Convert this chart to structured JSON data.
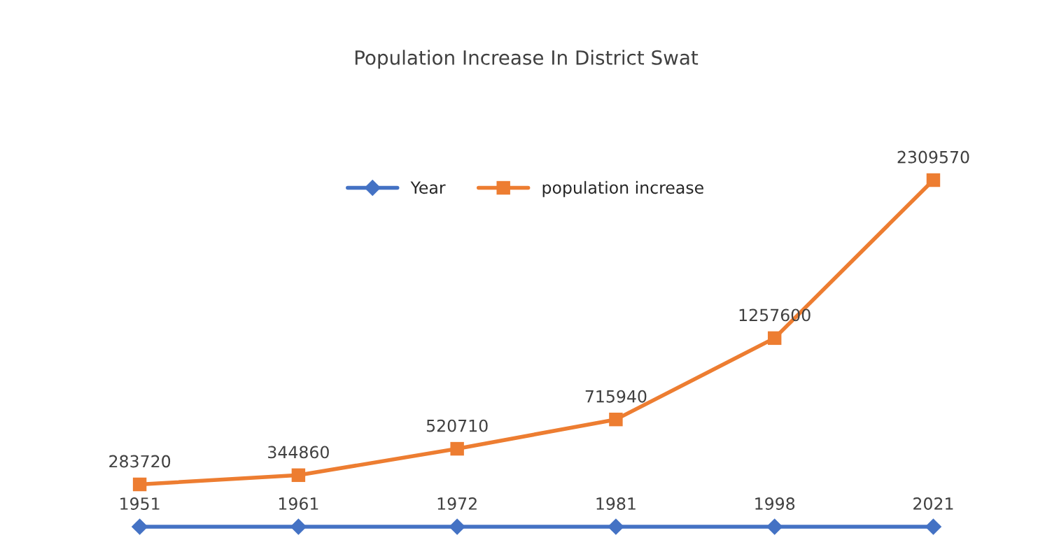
{
  "chart_data": {
    "type": "line",
    "title": "Population Increase In District Swat",
    "categories": [
      null,
      null,
      null,
      null,
      null,
      null
    ],
    "series": [
      {
        "name": "Year",
        "color": "#4472c4",
        "marker": "diamond",
        "values": [
          1951,
          1961,
          1972,
          1981,
          1998,
          2021
        ]
      },
      {
        "name": "population increase",
        "color": "#ed7d31",
        "marker": "square",
        "values": [
          283720,
          344860,
          520710,
          715940,
          1257600,
          2309570
        ]
      }
    ],
    "data_labels": true,
    "legend": "top",
    "grid": false,
    "line_style": "solid"
  }
}
